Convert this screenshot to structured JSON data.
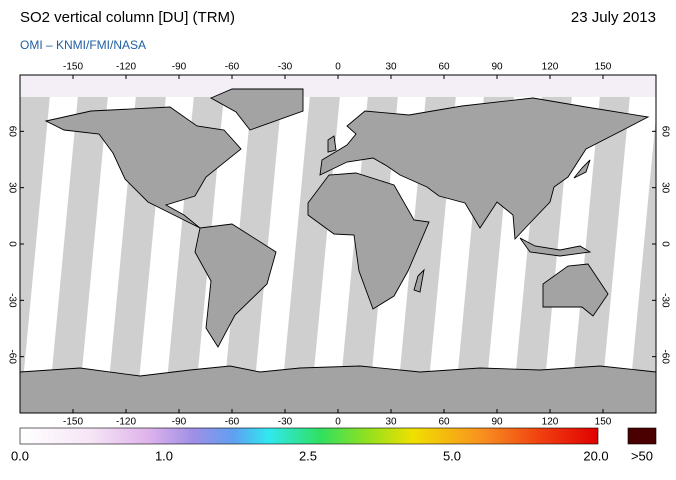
{
  "header": {
    "title": "SO2 vertical column [DU] (TRM)",
    "date": "23 July 2013",
    "subtitle": "OMI  –  KNMI/FMI/NASA"
  },
  "map": {
    "lon_ticks": [
      -150,
      -120,
      -90,
      -60,
      -30,
      0,
      30,
      60,
      90,
      120,
      150
    ],
    "lat_ticks": [
      60,
      30,
      0,
      -30,
      -60
    ]
  },
  "colorbar": {
    "labels": [
      "0.0",
      "1.0",
      "2.5",
      "5.0",
      "20.0"
    ],
    "overflow_label": ">50"
  }
}
